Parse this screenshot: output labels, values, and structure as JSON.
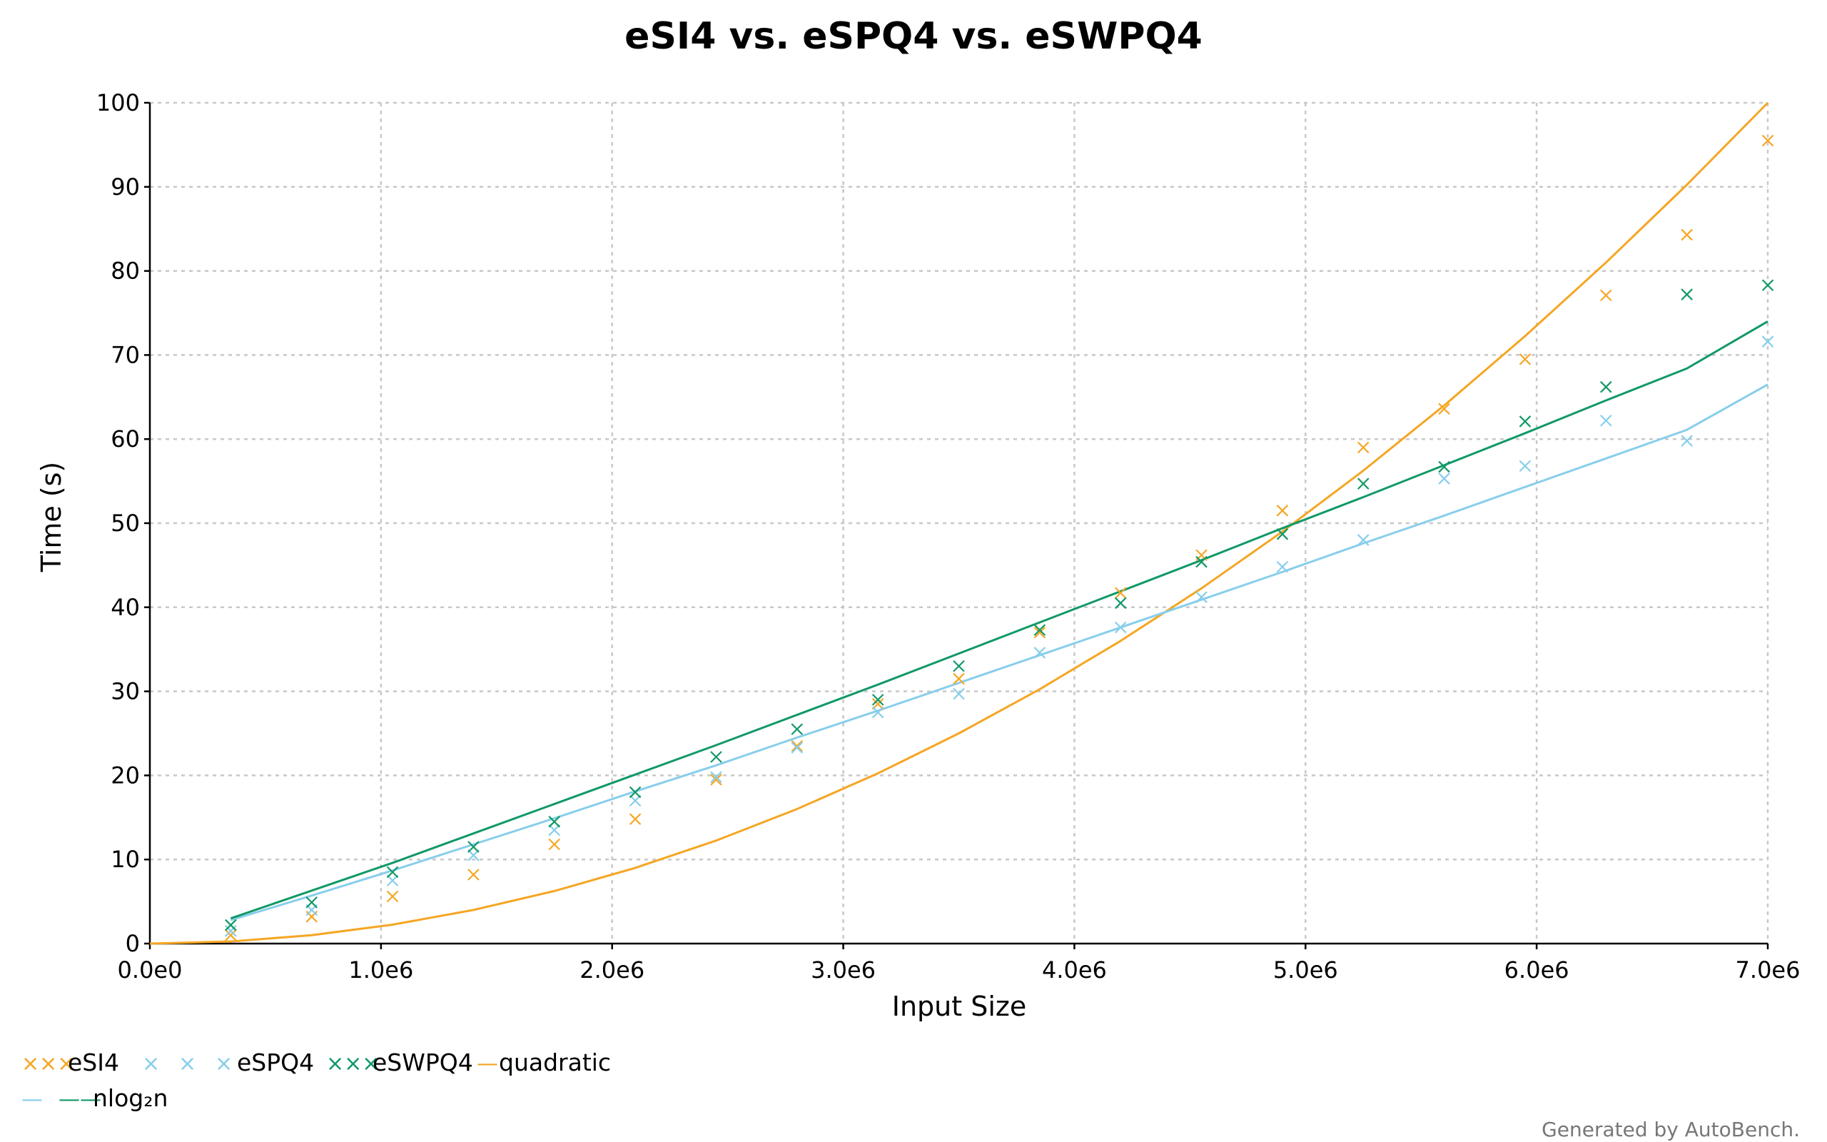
{
  "chart_data": {
    "type": "scatter",
    "title": "eSI4 vs. eSPQ4 vs. eSWPQ4",
    "xlabel": "Input Size",
    "ylabel": "Time (s)",
    "xlim": [
      0,
      7000000
    ],
    "ylim": [
      0,
      100
    ],
    "x_ticks": [
      0,
      1000000,
      2000000,
      3000000,
      4000000,
      5000000,
      6000000,
      7000000
    ],
    "x_tick_labels": [
      "0.0e0",
      "1.0e6",
      "2.0e6",
      "3.0e6",
      "4.0e6",
      "5.0e6",
      "6.0e6",
      "7.0e6"
    ],
    "y_ticks": [
      0,
      10,
      20,
      30,
      40,
      50,
      60,
      70,
      80,
      90,
      100
    ],
    "y_tick_labels": [
      "0",
      "10",
      "20",
      "30",
      "40",
      "50",
      "60",
      "70",
      "80",
      "90",
      "100"
    ],
    "grid": true,
    "legend_position": "bottom",
    "x": [
      350000,
      700000,
      1050000,
      1400000,
      1750000,
      2100000,
      2450000,
      2800000,
      3150000,
      3500000,
      3850000,
      4200000,
      4550000,
      4900000,
      5250000,
      5600000,
      5950000,
      6300000,
      6650000,
      7000000
    ],
    "series": [
      {
        "name": "eSI4",
        "kind": "points",
        "color": "#f5a623",
        "values": [
          1.0,
          3.2,
          5.6,
          8.2,
          11.8,
          14.8,
          19.5,
          23.5,
          28.5,
          31.5,
          37.0,
          41.7,
          46.2,
          51.5,
          59.0,
          63.6,
          69.5,
          77.1,
          84.3,
          95.5
        ]
      },
      {
        "name": "eSPQ4",
        "kind": "points",
        "color": "#87ceeb",
        "values": [
          1.5,
          4.0,
          7.5,
          10.5,
          13.5,
          17.0,
          19.8,
          23.3,
          27.5,
          29.7,
          34.6,
          37.6,
          41.2,
          44.8,
          48.0,
          55.3,
          56.8,
          62.2,
          59.8,
          71.6
        ]
      },
      {
        "name": "eSWPQ4",
        "kind": "points",
        "color": "#119966",
        "values": [
          2.2,
          4.9,
          8.5,
          11.5,
          14.5,
          18.0,
          22.2,
          25.5,
          29.0,
          33.0,
          37.3,
          40.5,
          45.4,
          48.7,
          54.7,
          56.7,
          62.1,
          66.2,
          77.2,
          78.3
        ]
      },
      {
        "name": "quadratic",
        "kind": "line",
        "color": "#f5a623",
        "x": [
          0,
          350000,
          700000,
          1050000,
          1400000,
          1750000,
          2100000,
          2450000,
          2800000,
          3150000,
          3500000,
          3850000,
          4200000,
          4550000,
          4900000,
          5250000,
          5600000,
          5950000,
          6300000,
          6650000,
          7000000
        ],
        "values": [
          0,
          0.25,
          1.0,
          2.25,
          4.0,
          6.25,
          9.0,
          12.25,
          16.0,
          20.25,
          25.0,
          30.25,
          36.0,
          42.25,
          49.0,
          56.25,
          64.0,
          72.25,
          81.0,
          90.25,
          100.0
        ]
      },
      {
        "name": "nlog₂n",
        "kind": "line",
        "color": "#87ceeb",
        "x": [
          350000,
          700000,
          1050000,
          1400000,
          1750000,
          2100000,
          2450000,
          2800000,
          3150000,
          3500000,
          3850000,
          4200000,
          4550000,
          4900000,
          5250000,
          5600000,
          5950000,
          6300000,
          6650000,
          7000000
        ],
        "values": [
          2.8,
          5.7,
          8.7,
          11.8,
          14.9,
          18.1,
          21.2,
          24.5,
          27.7,
          31.0,
          34.3,
          37.6,
          40.9,
          44.2,
          47.6,
          50.9,
          54.3,
          57.7,
          61.1,
          66.5
        ]
      },
      {
        "name": "",
        "kind": "line",
        "color": "#119966",
        "x": [
          350000,
          700000,
          1050000,
          1400000,
          1750000,
          2100000,
          2450000,
          2800000,
          3150000,
          3500000,
          3850000,
          4200000,
          4550000,
          4900000,
          5250000,
          5600000,
          5950000,
          6300000,
          6650000,
          7000000
        ],
        "values": [
          3.0,
          6.3,
          9.6,
          13.1,
          16.6,
          20.1,
          23.6,
          27.2,
          30.8,
          34.5,
          38.2,
          41.9,
          45.6,
          49.4,
          53.1,
          56.9,
          60.7,
          64.6,
          68.4,
          74.0
        ]
      }
    ],
    "legend": [
      {
        "label": "eSI4",
        "marker": "×××",
        "color": "#f5a623"
      },
      {
        "label": "",
        "marker": "×",
        "color": "#87ceeb"
      },
      {
        "label": "",
        "marker": "×",
        "color": "#87ceeb"
      },
      {
        "label": "eSPQ4",
        "marker": "×",
        "color": "#87ceeb"
      },
      {
        "label": "eSWPQ4",
        "marker": "×××",
        "color": "#119966"
      },
      {
        "label": "quadratic",
        "marker": "—",
        "color": "#f5a623"
      },
      {
        "label": "",
        "marker": "—",
        "color": "#87ceeb"
      },
      {
        "label": "nlog₂n",
        "marker": "——",
        "color": "#119966"
      }
    ]
  },
  "footer": {
    "note": "Generated by AutoBench."
  }
}
